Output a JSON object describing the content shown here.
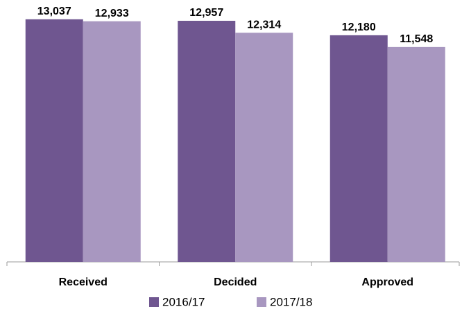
{
  "chart_data": {
    "type": "bar",
    "categories": [
      "Received",
      "Decided",
      "Approved"
    ],
    "series": [
      {
        "name": "2016/17",
        "color": "#6f5690",
        "values": [
          13037,
          12957,
          12180
        ],
        "value_labels": [
          "13,037",
          "12,957",
          "12,180"
        ]
      },
      {
        "name": "2017/18",
        "color": "#a897c0",
        "values": [
          12933,
          12314,
          11548
        ],
        "value_labels": [
          "12,933",
          "12,314",
          "11,548"
        ]
      }
    ],
    "ylim": [
      0,
      14000
    ],
    "legend": "bottom"
  }
}
